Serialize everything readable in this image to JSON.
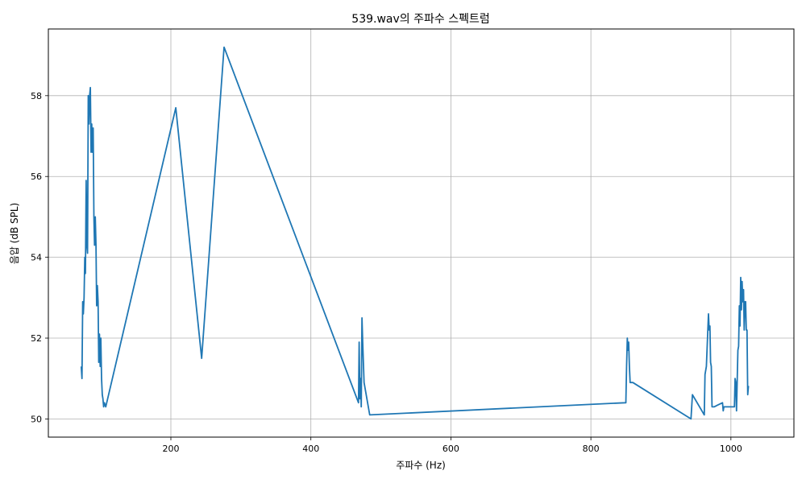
{
  "chart_data": {
    "type": "line",
    "title": "539.wav의 주파수 스펙트럼",
    "xlabel": "주파수 (Hz)",
    "ylabel": "음압 (dB SPL)",
    "xlim": [
      25,
      1090
    ],
    "ylim": [
      49.55,
      59.65
    ],
    "xticks": [
      200,
      400,
      600,
      800,
      1000
    ],
    "yticks": [
      50,
      52,
      54,
      56,
      58
    ],
    "grid": true,
    "series": [
      {
        "color": "#1f77b4",
        "x": [
          72,
          73,
          74,
          75,
          76,
          77,
          78,
          79,
          80,
          81,
          82,
          83,
          84,
          85,
          86,
          87,
          88,
          89,
          90,
          91,
          92,
          93,
          94,
          95,
          96,
          97,
          98,
          99,
          100,
          101,
          102,
          103,
          104,
          105,
          107,
          207,
          244,
          276,
          468,
          469,
          470,
          471,
          472,
          473,
          474,
          476,
          484,
          849,
          850,
          851,
          852,
          853,
          854,
          855,
          856,
          860,
          943,
          945,
          962,
          963,
          965,
          968,
          969,
          970,
          971,
          972,
          973,
          974,
          975,
          976,
          988,
          989,
          990,
          991,
          993,
          1005,
          1006,
          1007,
          1008,
          1009,
          1010,
          1011,
          1012,
          1013,
          1014,
          1015,
          1016,
          1017,
          1018,
          1019,
          1020,
          1021,
          1022,
          1023,
          1024,
          1025,
          1026
        ],
        "y": [
          51.3,
          51.0,
          52.9,
          52.6,
          53.0,
          54.0,
          53.6,
          55.9,
          54.3,
          54.1,
          58.0,
          57.3,
          58.0,
          58.2,
          56.6,
          57.3,
          56.6,
          57.2,
          55.0,
          54.3,
          55.0,
          54.3,
          52.8,
          53.3,
          52.9,
          51.4,
          52.1,
          51.3,
          52.0,
          51.0,
          50.6,
          50.5,
          50.3,
          50.4,
          50.3,
          57.7,
          51.5,
          59.2,
          50.4,
          51.9,
          50.5,
          51.0,
          50.3,
          52.5,
          51.9,
          50.9,
          50.1,
          50.4,
          50.4,
          51.3,
          52.0,
          51.7,
          51.9,
          51.3,
          50.9,
          50.9,
          50.0,
          50.6,
          50.1,
          51.1,
          51.3,
          52.6,
          52.2,
          52.3,
          51.4,
          51.3,
          50.3,
          50.3,
          50.3,
          50.3,
          50.4,
          50.2,
          50.3,
          50.3,
          50.3,
          50.3,
          51.0,
          50.9,
          50.2,
          50.9,
          51.7,
          51.8,
          52.8,
          52.3,
          53.5,
          52.7,
          53.4,
          52.9,
          53.2,
          52.2,
          52.9,
          52.9,
          52.2,
          52.2,
          50.6,
          50.8,
          50.8
        ]
      }
    ]
  }
}
